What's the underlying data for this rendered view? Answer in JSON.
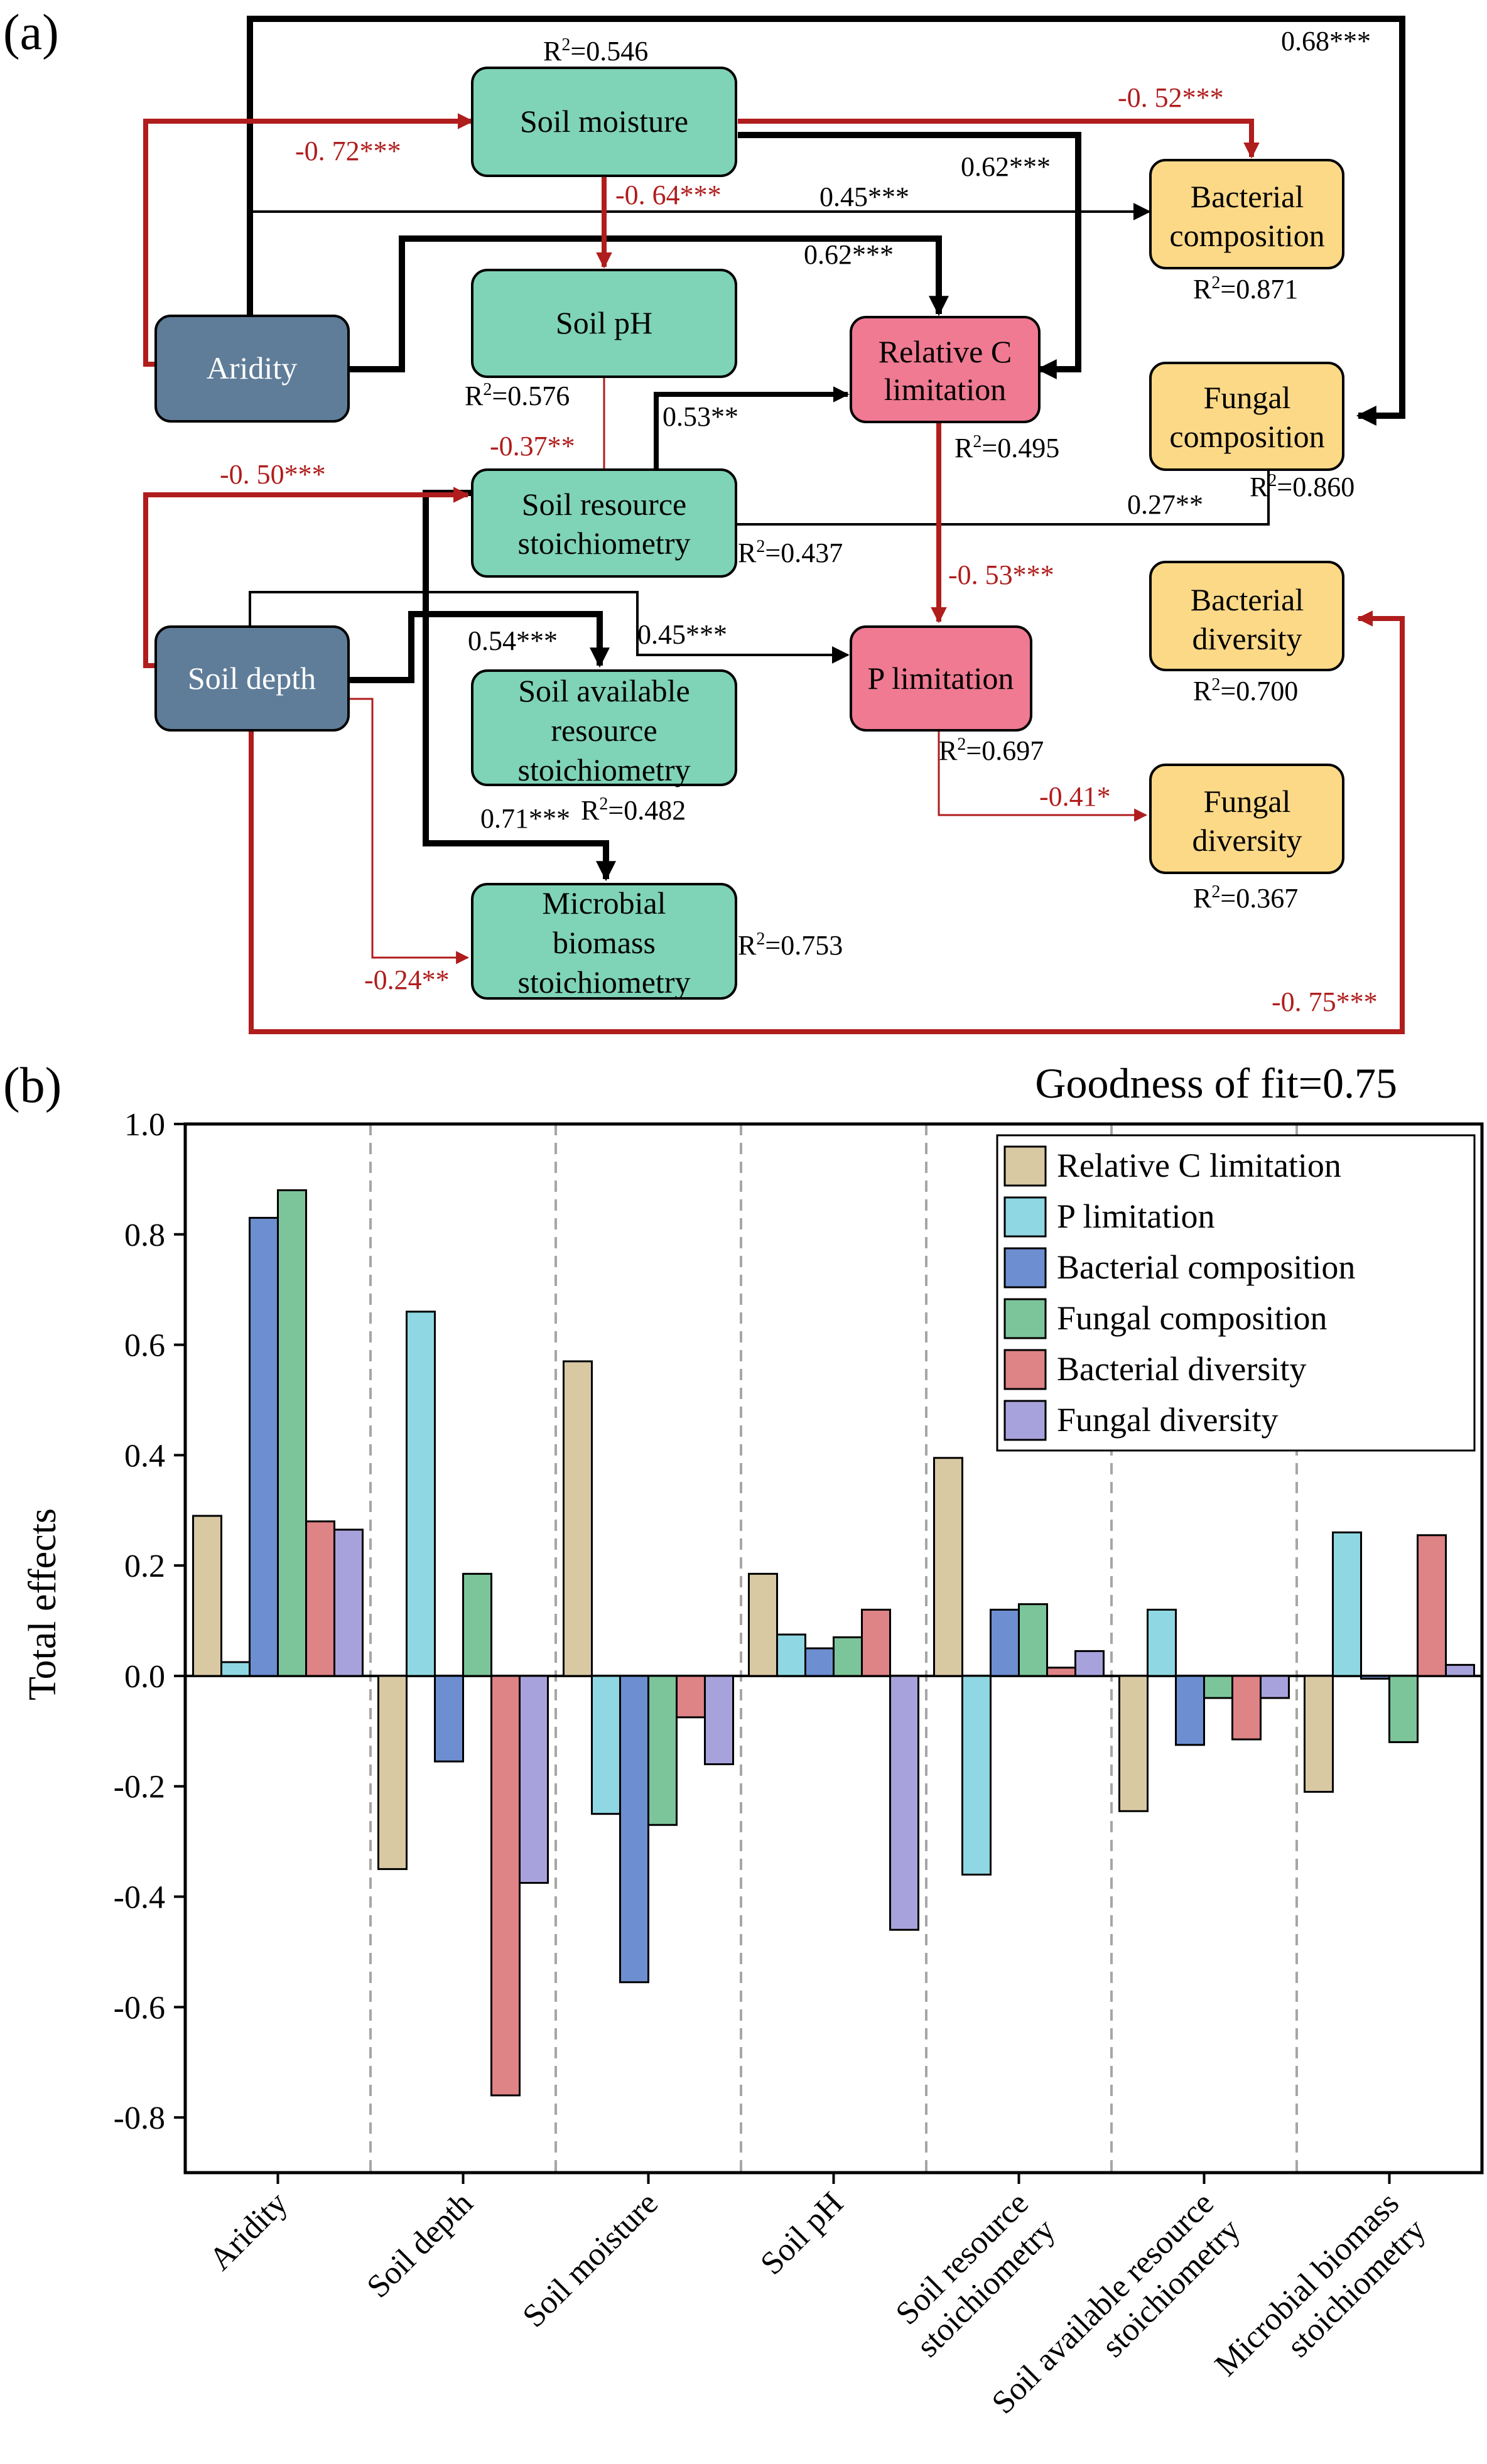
{
  "panel_a": {
    "label": "(a)",
    "nodes": {
      "aridity": "Aridity",
      "soil_depth": "Soil depth",
      "soil_moisture": "Soil moisture",
      "soil_ph": "Soil pH",
      "soil_resource_stoich": [
        "Soil resource",
        "stoichiometry"
      ],
      "soil_available_stoich": [
        "Soil available",
        "resource",
        "stoichiometry"
      ],
      "microbial_biomass_stoich": [
        "Microbial",
        "biomass",
        "stoichiometry"
      ],
      "relative_c_limitation": [
        "Relative C",
        "limitation"
      ],
      "p_limitation": "P limitation",
      "bacterial_composition": [
        "Bacterial",
        "composition"
      ],
      "fungal_composition": [
        "Fungal",
        "composition"
      ],
      "bacterial_diversity": [
        "Bacterial",
        "diversity"
      ],
      "fungal_diversity": [
        "Fungal",
        "diversity"
      ]
    },
    "r2": {
      "soil_moisture": "0.546",
      "soil_ph": "0.576",
      "soil_resource_stoich": "0.437",
      "soil_available_stoich": "0.482",
      "microbial_biomass_stoich": "0.753",
      "relative_c_limitation": "0.495",
      "p_limitation": "0.697",
      "bacterial_composition": "0.871",
      "fungal_composition": "0.860",
      "bacterial_diversity": "0.700",
      "fungal_diversity": "0.367"
    },
    "r2_prefix": "R",
    "r2_sup": "2",
    "r2_eq": "=",
    "path_coefficients": {
      "aridity_to_fungal_comp": "0.68***",
      "aridity_to_soil_moisture": "-0. 72***",
      "soil_moisture_to_bacterial_comp": "-0. 52***",
      "soil_moisture_to_rel_c": "0.62***",
      "soil_moisture_to_soil_ph": "-0. 64***",
      "aridity_to_bacterial_comp": "0.45***",
      "aridity_to_rel_c": "0.62***",
      "soil_ph_to_soil_resource": "-0.37**",
      "soil_resource_to_rel_c": "0.53**",
      "soil_depth_to_soil_resource": "-0. 50***",
      "soil_resource_to_fungal_comp": "0.27**",
      "rel_c_to_p_limitation": "-0. 53***",
      "soil_depth_to_soil_available": "0.54***",
      "soil_depth_to_p_limitation": "0.45***",
      "p_limitation_to_fungal_div": "-0.41*",
      "soil_resource_to_microbial": "0.71***",
      "soil_depth_to_microbial": "-0.24**",
      "soil_depth_to_bacterial_div": "-0. 75***"
    },
    "colors": {
      "driver_box": "#5f7d99",
      "soil_box": "#7fd3b6",
      "limitation_box": "#ef7a92",
      "microbe_box": "#fcd987",
      "positive_path": "#000000",
      "negative_path": "#b01d1d"
    }
  },
  "panel_b": {
    "label": "(b)",
    "goodness_of_fit": "Goodness of fit=0.75"
  },
  "chart_data": {
    "type": "bar",
    "categories": [
      [
        "Aridity"
      ],
      [
        "Soil depth"
      ],
      [
        "Soil moisture"
      ],
      [
        "Soil pH"
      ],
      [
        "Soil resource",
        "stoichiometry"
      ],
      [
        "Soil available resource",
        "stoichiometry"
      ],
      [
        "Microbial biomass",
        "stoichiometry"
      ]
    ],
    "series": [
      {
        "name": "Relative C limitation",
        "color": "#d9c9a3",
        "values": [
          0.29,
          -0.35,
          0.57,
          0.185,
          0.395,
          -0.245,
          -0.21
        ]
      },
      {
        "name": "P limitation",
        "color": "#8fd8e3",
        "values": [
          0.025,
          0.66,
          -0.25,
          0.075,
          -0.36,
          0.12,
          0.26
        ]
      },
      {
        "name": "Bacterial composition",
        "color": "#6d8fd1",
        "values": [
          0.83,
          -0.155,
          -0.555,
          0.05,
          0.12,
          -0.125,
          -0.005
        ]
      },
      {
        "name": "Fungal composition",
        "color": "#7cc59a",
        "values": [
          0.88,
          0.185,
          -0.27,
          0.07,
          0.13,
          -0.04,
          -0.12
        ]
      },
      {
        "name": "Bacterial diversity",
        "color": "#de8386",
        "values": [
          0.28,
          -0.76,
          -0.075,
          0.12,
          0.015,
          -0.115,
          0.255
        ]
      },
      {
        "name": "Fungal diversity",
        "color": "#a8a2dc",
        "values": [
          0.265,
          -0.375,
          -0.16,
          -0.46,
          0.045,
          -0.04,
          0.02
        ]
      }
    ],
    "ylabel": "Total effects",
    "xlabel": "",
    "ylim": [
      -0.9,
      1.0
    ],
    "yticks": [
      1.0,
      0.8,
      0.6,
      0.4,
      0.2,
      0.0,
      -0.2,
      -0.4,
      -0.6,
      -0.8
    ],
    "ytick_labels": [
      "1.0",
      "0.8",
      "0.6",
      "0.4",
      "0.2",
      "0.0",
      "-0.2",
      "-0.4",
      "-0.6",
      "-0.8"
    ],
    "legend_position": "top-right",
    "grid": false,
    "category_separators": "dashed"
  }
}
